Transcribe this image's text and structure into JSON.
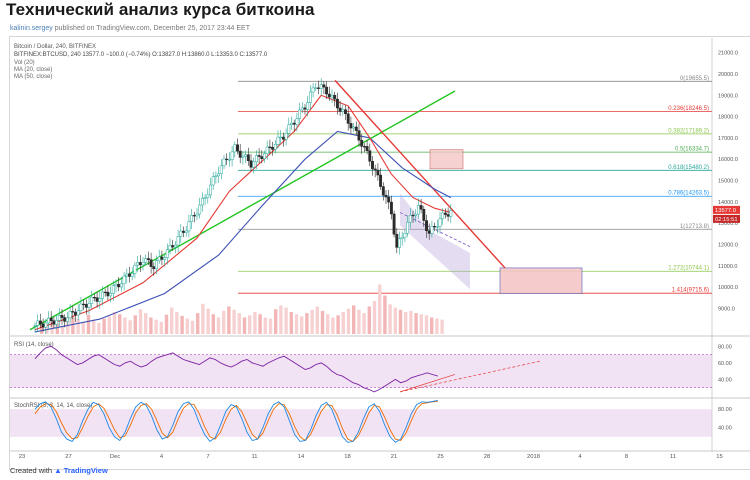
{
  "page": {
    "title": "Технический анализ курса биткоина",
    "meta_author": "kalinin.sergey",
    "meta_rest": " published on TradingView.com, December 25, 2017 23:44 EET",
    "footer_created": "Created with",
    "footer_brand": "TradingView"
  },
  "chart_data": {
    "type": "candlestick",
    "symbol_line": "Bitcoin / Dollar, 240, BITFINEX",
    "quote_line": "BITFINEX:BTCUSD, 240  13577.0  −100.0 (−0.74%)  O:13827.0  H:13860.0  L:13353.0  C:13577.0",
    "indicators": [
      "Vol (20)",
      "MA (20, close)",
      "MA (50, close)"
    ],
    "last_price": "13577.0",
    "countdown": "02:15:51",
    "price_axis": {
      "min": 7800,
      "max": 21500,
      "ticks": [
        9000,
        10000,
        11000,
        12000,
        13000,
        14000,
        15000,
        16000,
        17000,
        18000,
        19000,
        20000,
        21000
      ]
    },
    "x_ticks": [
      "23",
      "27",
      "Dec",
      "4",
      "7",
      "11",
      "14",
      "18",
      "21",
      "25",
      "28",
      "2018",
      "4",
      "8",
      "11",
      "15"
    ],
    "price_path": [
      {
        "t": 0,
        "p": 8200
      },
      {
        "t": 6,
        "p": 8600
      },
      {
        "t": 10,
        "p": 9300
      },
      {
        "t": 14,
        "p": 9800
      },
      {
        "t": 17,
        "p": 10500
      },
      {
        "t": 20,
        "p": 11300
      },
      {
        "t": 22,
        "p": 11000
      },
      {
        "t": 25,
        "p": 11800
      },
      {
        "t": 28,
        "p": 12800
      },
      {
        "t": 31,
        "p": 14000
      },
      {
        "t": 34,
        "p": 15500
      },
      {
        "t": 37,
        "p": 16500
      },
      {
        "t": 40,
        "p": 15800
      },
      {
        "t": 43,
        "p": 16400
      },
      {
        "t": 46,
        "p": 17100
      },
      {
        "t": 48,
        "p": 17800
      },
      {
        "t": 50,
        "p": 18500
      },
      {
        "t": 52,
        "p": 19500
      },
      {
        "t": 54,
        "p": 19200
      },
      {
        "t": 57,
        "p": 18200
      },
      {
        "t": 60,
        "p": 17000
      },
      {
        "t": 62,
        "p": 16000
      },
      {
        "t": 64,
        "p": 14800
      },
      {
        "t": 66,
        "p": 13500
      },
      {
        "t": 67,
        "p": 11800
      },
      {
        "t": 69,
        "p": 13000
      },
      {
        "t": 71,
        "p": 13800
      },
      {
        "t": 73,
        "p": 12500
      },
      {
        "t": 75,
        "p": 13200
      },
      {
        "t": 77,
        "p": 13600
      }
    ],
    "ma20_path": [
      {
        "t": 0,
        "p": 8000
      },
      {
        "t": 10,
        "p": 8900
      },
      {
        "t": 20,
        "p": 10200
      },
      {
        "t": 30,
        "p": 12300
      },
      {
        "t": 36,
        "p": 14500
      },
      {
        "t": 42,
        "p": 15900
      },
      {
        "t": 48,
        "p": 17300
      },
      {
        "t": 53,
        "p": 19000
      },
      {
        "t": 58,
        "p": 18500
      },
      {
        "t": 62,
        "p": 17000
      },
      {
        "t": 66,
        "p": 15300
      },
      {
        "t": 70,
        "p": 14200
      },
      {
        "t": 74,
        "p": 13700
      },
      {
        "t": 77,
        "p": 13500
      }
    ],
    "ma50_path": [
      {
        "t": 0,
        "p": 7900
      },
      {
        "t": 12,
        "p": 8500
      },
      {
        "t": 24,
        "p": 9700
      },
      {
        "t": 34,
        "p": 11500
      },
      {
        "t": 42,
        "p": 13800
      },
      {
        "t": 50,
        "p": 16000
      },
      {
        "t": 56,
        "p": 17300
      },
      {
        "t": 62,
        "p": 17000
      },
      {
        "t": 68,
        "p": 15600
      },
      {
        "t": 74,
        "p": 14600
      },
      {
        "t": 77,
        "p": 14200
      }
    ],
    "fib_levels": [
      {
        "label": "0(19655.5)",
        "price": 19655.5,
        "color": "#888888"
      },
      {
        "label": "0.236(18246.5)",
        "price": 18246.5,
        "color": "#e53935"
      },
      {
        "label": "0.382(17189.2)",
        "price": 17189.2,
        "color": "#8bc34a"
      },
      {
        "label": "0.5(16334.7)",
        "price": 16334.7,
        "color": "#4caf50"
      },
      {
        "label": "0.618(15480.2)",
        "price": 15480.2,
        "color": "#26a69a"
      },
      {
        "label": "0.786(14263.5)",
        "price": 14263.5,
        "color": "#2196f3"
      },
      {
        "label": "1(12713.8)",
        "price": 12713.8,
        "color": "#888888"
      },
      {
        "label": "1.272(10744.1)",
        "price": 10744.1,
        "color": "#8bc34a"
      },
      {
        "label": "1.414(9715.6)",
        "price": 9715.6,
        "color": "#e53935"
      }
    ],
    "volume_scale": {
      "min": 0,
      "max": 100
    },
    "volumes": [
      22,
      18,
      25,
      20,
      15,
      24,
      30,
      28,
      22,
      35,
      26,
      20,
      28,
      32,
      40,
      36,
      30,
      25,
      34,
      45,
      38,
      30,
      26,
      22,
      35,
      48,
      40,
      33,
      28,
      24,
      38,
      55,
      46,
      36,
      30,
      42,
      50,
      44,
      38,
      30,
      34,
      40,
      36,
      30,
      28,
      45,
      52,
      48,
      40,
      36,
      32,
      38,
      44,
      50,
      42,
      36,
      30,
      34,
      40,
      46,
      52,
      44,
      38,
      50,
      60,
      90,
      70,
      54,
      48,
      44,
      40,
      42,
      38,
      36,
      34,
      30,
      28,
      26
    ],
    "rsi": {
      "label": "RSI (14, close)",
      "ticks": [
        80,
        60,
        40
      ],
      "upper": 70,
      "lower": 30,
      "min": 20,
      "max": 90,
      "values": [
        65,
        72,
        78,
        80,
        76,
        70,
        66,
        62,
        58,
        60,
        64,
        68,
        70,
        66,
        62,
        58,
        56,
        60,
        62,
        58,
        55,
        57,
        62,
        66,
        68,
        70,
        72,
        68,
        64,
        62,
        60,
        58,
        62,
        66,
        64,
        60,
        57,
        55,
        58,
        62,
        64,
        60,
        58,
        56,
        60,
        63,
        66,
        68,
        64,
        60,
        56,
        52,
        54,
        58,
        60,
        56,
        50,
        46,
        44,
        40,
        36,
        34,
        30,
        28,
        25,
        28,
        32,
        36,
        40,
        36,
        38,
        42,
        44,
        46,
        48,
        46,
        44
      ]
    },
    "stoch": {
      "label": "StochRSI (3, 3, 14, 14, close)",
      "ticks": [
        80,
        40
      ],
      "upper": 80,
      "lower": 20,
      "min": 0,
      "max": 100,
      "k": [
        80,
        92,
        96,
        85,
        60,
        30,
        15,
        10,
        25,
        55,
        80,
        95,
        90,
        70,
        40,
        20,
        12,
        30,
        60,
        85,
        95,
        88,
        65,
        35,
        15,
        20,
        45,
        75,
        92,
        96,
        80,
        50,
        25,
        10,
        18,
        45,
        75,
        90,
        85,
        60,
        30,
        12,
        15,
        40,
        70,
        90,
        96,
        85,
        55,
        25,
        10,
        12,
        35,
        65,
        88,
        95,
        80,
        50,
        20,
        8,
        10,
        30,
        60,
        85,
        92,
        75,
        45,
        20,
        8,
        15,
        40,
        70,
        90,
        96,
        95,
        97,
        99
      ],
      "d": [
        70,
        85,
        92,
        90,
        75,
        50,
        28,
        16,
        18,
        40,
        65,
        85,
        92,
        82,
        60,
        35,
        18,
        22,
        45,
        72,
        88,
        92,
        80,
        55,
        28,
        18,
        30,
        58,
        82,
        92,
        90,
        70,
        42,
        20,
        15,
        30,
        58,
        80,
        88,
        75,
        50,
        25,
        15,
        28,
        55,
        80,
        92,
        90,
        70,
        42,
        20,
        12,
        25,
        50,
        75,
        90,
        88,
        68,
        38,
        15,
        10,
        22,
        45,
        72,
        88,
        85,
        62,
        35,
        15,
        12,
        28,
        55,
        80,
        92,
        94,
        96,
        97
      ]
    }
  }
}
